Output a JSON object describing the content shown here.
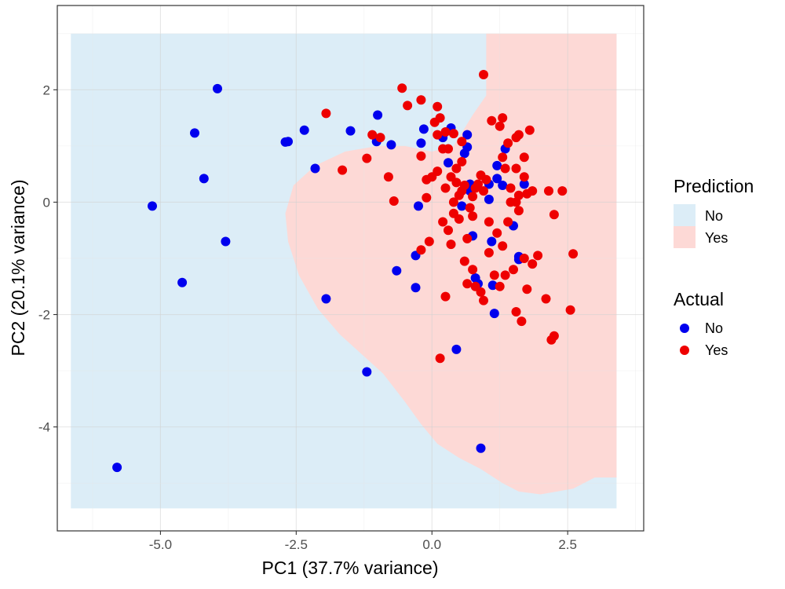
{
  "chart_data": {
    "type": "scatter",
    "title": "",
    "xlabel": "PC1 (37.7% variance)",
    "ylabel": "PC2 (20.1% variance)",
    "xlim": [
      -6.9,
      3.9
    ],
    "ylim": [
      -5.85,
      3.5
    ],
    "x_ticks": [
      -5.0,
      -2.5,
      0.0,
      2.5
    ],
    "x_tick_labels": [
      "-5.0",
      "-2.5",
      "0.0",
      "2.5"
    ],
    "y_ticks": [
      2,
      0,
      -2,
      -4
    ],
    "y_tick_labels": [
      "2",
      "0",
      "-2",
      "-4"
    ],
    "grid": true,
    "legend_position": "right",
    "prediction_legend": {
      "title": "Prediction",
      "items": [
        {
          "label": "No",
          "color": "#dcedf7"
        },
        {
          "label": "Yes",
          "color": "#fdd9d6"
        }
      ]
    },
    "actual_legend": {
      "title": "Actual",
      "items": [
        {
          "label": "No",
          "color": "#0000ee"
        },
        {
          "label": "Yes",
          "color": "#ee0000"
        }
      ]
    },
    "decision_region": {
      "extent_x": [
        -6.65,
        3.4
      ],
      "extent_y": [
        -5.45,
        3.0
      ],
      "no_color": "#dcedf7",
      "yes_color": "#fdd9d6",
      "yes_boundary": [
        [
          1.0,
          3.0
        ],
        [
          3.4,
          3.0
        ],
        [
          3.4,
          -4.9
        ],
        [
          3.0,
          -4.9
        ],
        [
          2.6,
          -5.1
        ],
        [
          2.0,
          -5.2
        ],
        [
          1.6,
          -5.15
        ],
        [
          1.3,
          -5.0
        ],
        [
          0.9,
          -4.75
        ],
        [
          0.5,
          -4.55
        ],
        [
          0.1,
          -4.3
        ],
        [
          -0.2,
          -3.95
        ],
        [
          -0.5,
          -3.55
        ],
        [
          -0.9,
          -3.05
        ],
        [
          -1.3,
          -2.7
        ],
        [
          -1.7,
          -2.35
        ],
        [
          -2.1,
          -1.9
        ],
        [
          -2.45,
          -1.3
        ],
        [
          -2.65,
          -0.7
        ],
        [
          -2.7,
          -0.2
        ],
        [
          -2.55,
          0.3
        ],
        [
          -2.15,
          0.65
        ],
        [
          -1.6,
          0.9
        ],
        [
          -1.0,
          1.0
        ],
        [
          -0.5,
          1.0
        ],
        [
          0.0,
          0.9
        ],
        [
          0.4,
          1.0
        ],
        [
          0.75,
          1.55
        ],
        [
          1.0,
          1.9
        ]
      ]
    },
    "series": [
      {
        "name": "No",
        "color": "#0000ee",
        "points": [
          [
            -5.8,
            -4.72
          ],
          [
            -5.15,
            -0.07
          ],
          [
            -4.6,
            -1.43
          ],
          [
            -4.37,
            1.23
          ],
          [
            -4.2,
            0.42
          ],
          [
            -3.95,
            2.02
          ],
          [
            -3.8,
            -0.7
          ],
          [
            -2.7,
            1.07
          ],
          [
            -2.65,
            1.08
          ],
          [
            -2.35,
            1.28
          ],
          [
            -2.15,
            0.6
          ],
          [
            -1.95,
            -1.72
          ],
          [
            -1.5,
            1.27
          ],
          [
            -1.2,
            -3.02
          ],
          [
            -1.0,
            1.55
          ],
          [
            -1.02,
            1.08
          ],
          [
            -0.75,
            1.02
          ],
          [
            -0.65,
            -1.22
          ],
          [
            -0.3,
            -0.95
          ],
          [
            -0.25,
            -0.07
          ],
          [
            -0.3,
            -1.52
          ],
          [
            -0.2,
            1.05
          ],
          [
            -0.15,
            1.3
          ],
          [
            0.2,
            1.15
          ],
          [
            0.35,
            1.32
          ],
          [
            0.3,
            0.7
          ],
          [
            0.45,
            -2.62
          ],
          [
            0.55,
            -0.07
          ],
          [
            0.6,
            0.87
          ],
          [
            0.65,
            1.2
          ],
          [
            0.65,
            0.98
          ],
          [
            0.7,
            0.2
          ],
          [
            0.7,
            0.32
          ],
          [
            0.75,
            -0.6
          ],
          [
            0.8,
            -1.35
          ],
          [
            0.85,
            -1.45
          ],
          [
            0.9,
            -4.38
          ],
          [
            1.05,
            0.05
          ],
          [
            1.05,
            0.32
          ],
          [
            1.1,
            -0.7
          ],
          [
            1.12,
            -1.48
          ],
          [
            1.15,
            -1.98
          ],
          [
            1.2,
            0.42
          ],
          [
            1.2,
            0.65
          ],
          [
            1.3,
            0.3
          ],
          [
            1.35,
            0.95
          ],
          [
            1.5,
            -0.42
          ],
          [
            1.6,
            -0.97
          ],
          [
            1.6,
            -1.02
          ],
          [
            1.7,
            0.32
          ]
        ]
      },
      {
        "name": "Yes",
        "color": "#ee0000",
        "points": [
          [
            0.95,
            2.27
          ],
          [
            -0.55,
            2.03
          ],
          [
            -0.45,
            1.72
          ],
          [
            -0.2,
            1.82
          ],
          [
            -1.95,
            1.58
          ],
          [
            -1.1,
            1.2
          ],
          [
            -0.95,
            1.15
          ],
          [
            -0.2,
            0.82
          ],
          [
            0.1,
            1.7
          ],
          [
            0.15,
            1.5
          ],
          [
            0.05,
            1.42
          ],
          [
            0.25,
            1.25
          ],
          [
            0.1,
            1.2
          ],
          [
            0.4,
            1.22
          ],
          [
            0.2,
            0.95
          ],
          [
            -1.65,
            0.57
          ],
          [
            -1.2,
            0.78
          ],
          [
            -0.8,
            0.45
          ],
          [
            -0.7,
            0.02
          ],
          [
            -0.1,
            0.4
          ],
          [
            -0.1,
            0.08
          ],
          [
            0.0,
            0.45
          ],
          [
            0.1,
            0.55
          ],
          [
            0.25,
            0.25
          ],
          [
            0.35,
            0.45
          ],
          [
            0.4,
            0.0
          ],
          [
            0.45,
            0.35
          ],
          [
            0.5,
            0.12
          ],
          [
            0.55,
            0.2
          ],
          [
            0.6,
            0.3
          ],
          [
            0.75,
            0.1
          ],
          [
            0.8,
            0.25
          ],
          [
            0.85,
            0.32
          ],
          [
            0.9,
            0.48
          ],
          [
            0.95,
            0.2
          ],
          [
            1.0,
            0.4
          ],
          [
            1.3,
            0.8
          ],
          [
            1.35,
            0.6
          ],
          [
            1.4,
            1.05
          ],
          [
            1.45,
            0.25
          ],
          [
            1.55,
            0.0
          ],
          [
            1.7,
            0.45
          ],
          [
            1.75,
            0.15
          ],
          [
            1.85,
            0.2
          ],
          [
            2.15,
            0.2
          ],
          [
            2.4,
            0.2
          ],
          [
            0.2,
            -0.35
          ],
          [
            0.3,
            -0.5
          ],
          [
            0.35,
            -0.75
          ],
          [
            0.4,
            -0.2
          ],
          [
            0.5,
            -0.3
          ],
          [
            0.65,
            -0.65
          ],
          [
            0.6,
            -1.05
          ],
          [
            0.75,
            -1.2
          ],
          [
            0.8,
            -1.5
          ],
          [
            0.9,
            -1.6
          ],
          [
            0.95,
            -1.75
          ],
          [
            1.05,
            -0.9
          ],
          [
            1.15,
            -1.3
          ],
          [
            1.25,
            -1.5
          ],
          [
            1.35,
            -1.3
          ],
          [
            1.5,
            -1.2
          ],
          [
            1.7,
            -1.0
          ],
          [
            1.85,
            -1.1
          ],
          [
            1.95,
            -0.95
          ],
          [
            1.75,
            -1.55
          ],
          [
            1.55,
            -1.95
          ],
          [
            1.65,
            -2.12
          ],
          [
            2.1,
            -1.72
          ],
          [
            2.2,
            -2.45
          ],
          [
            2.25,
            -2.38
          ],
          [
            2.55,
            -1.92
          ],
          [
            2.6,
            -0.92
          ],
          [
            2.25,
            -0.22
          ],
          [
            0.15,
            -2.78
          ],
          [
            0.25,
            -1.68
          ],
          [
            -0.2,
            -0.85
          ],
          [
            -0.05,
            -0.7
          ],
          [
            0.65,
            -1.45
          ],
          [
            1.1,
            1.45
          ],
          [
            1.25,
            1.35
          ],
          [
            1.55,
            1.15
          ],
          [
            1.6,
            1.2
          ],
          [
            1.8,
            1.28
          ],
          [
            1.7,
            0.8
          ],
          [
            1.55,
            0.6
          ],
          [
            1.6,
            -0.15
          ],
          [
            0.45,
            0.6
          ],
          [
            0.55,
            0.72
          ],
          [
            1.3,
            1.5
          ],
          [
            0.7,
            -0.1
          ],
          [
            0.75,
            -0.25
          ],
          [
            1.05,
            -0.35
          ],
          [
            1.2,
            -0.55
          ],
          [
            1.3,
            -0.78
          ],
          [
            1.4,
            -0.35
          ],
          [
            1.45,
            0.0
          ],
          [
            1.6,
            0.12
          ],
          [
            0.3,
            0.95
          ],
          [
            0.55,
            1.08
          ]
        ]
      }
    ]
  }
}
